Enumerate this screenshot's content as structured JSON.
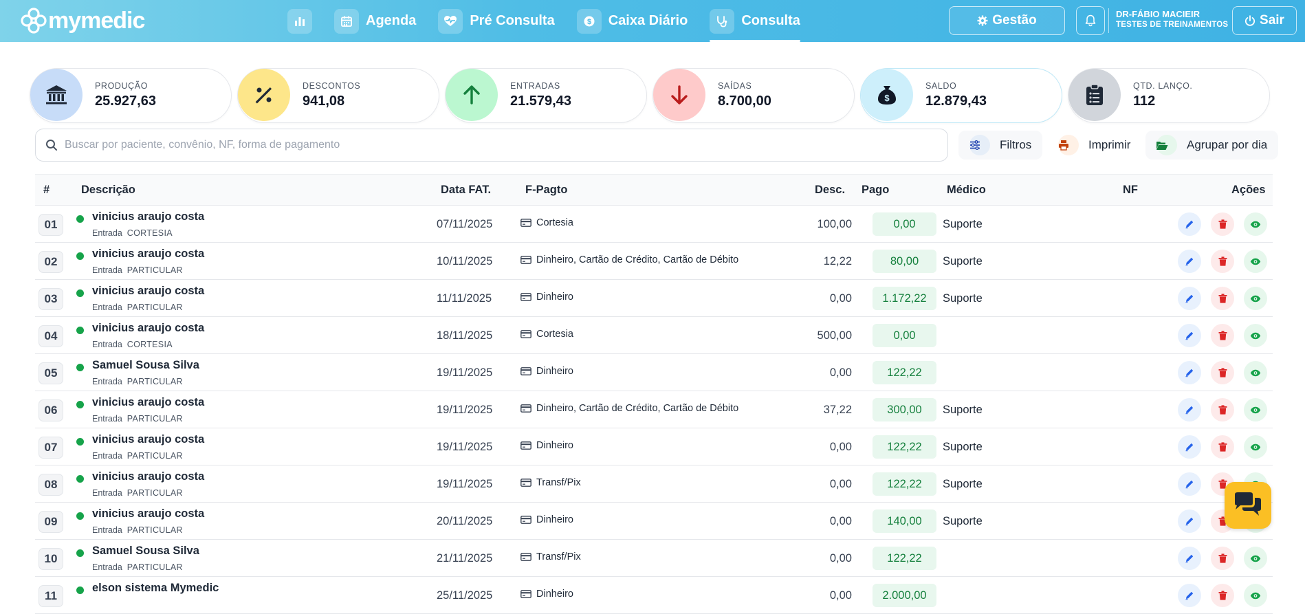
{
  "header": {
    "logo_text": "mymedic",
    "nav": [
      {
        "label": "",
        "icon": "bar-chart-icon"
      },
      {
        "label": "Agenda",
        "icon": "calendar-icon"
      },
      {
        "label": "Pré Consulta",
        "icon": "heart-pulse-icon"
      },
      {
        "label": "Caixa Diário",
        "icon": "money-icon"
      },
      {
        "label": "Consulta",
        "icon": "stethoscope-icon",
        "active": true
      }
    ],
    "gestao_label": "Gestão",
    "user_name": "DR-FÁBIO MACIEIR",
    "user_sub": "TESTES DE TREINAMENTOS",
    "sair_label": "Sair"
  },
  "stats": [
    {
      "label": "PRODUÇÃO",
      "value": "25.927,63",
      "icon": "bank-icon",
      "color": "#c7dcf8",
      "icon_color": "#1f2937"
    },
    {
      "label": "DESCONTOS",
      "value": "941,08",
      "icon": "percent-icon",
      "color": "#fde68a",
      "icon_color": "#1f2937"
    },
    {
      "label": "ENTRADAS",
      "value": "21.579,43",
      "icon": "arrow-up-icon",
      "color": "#bbf7d0",
      "icon_color": "#15803d"
    },
    {
      "label": "SAÍDAS",
      "value": "8.700,00",
      "icon": "arrow-down-icon",
      "color": "#fecaca",
      "icon_color": "#b91c1c"
    },
    {
      "label": "SALDO",
      "value": "12.879,43",
      "icon": "money-bag-icon",
      "color": "#cdeffb",
      "icon_color": "#111827"
    },
    {
      "label": "QTD. LANÇO.",
      "value": "112",
      "icon": "clipboard-icon",
      "color": "#d1d5db",
      "icon_color": "#1f2937"
    }
  ],
  "search": {
    "placeholder": "Buscar por paciente, convênio, NF, forma de pagamento"
  },
  "tools": {
    "filtros": "Filtros",
    "imprimir": "Imprimir",
    "agrupar": "Agrupar por dia"
  },
  "table": {
    "headers": {
      "num": "#",
      "descricao": "Descrição",
      "data": "Data FAT.",
      "fpagto": "F-Pagto",
      "desc": "Desc.",
      "pago": "Pago",
      "medico": "Médico",
      "nf": "NF",
      "acoes": "Ações"
    },
    "rows": [
      {
        "num": "01",
        "name": "vinicius araujo costa",
        "tipo": "Entrada",
        "conv": "CORTESIA",
        "data": "07/11/2025",
        "fpagto": "Cortesia",
        "desc": "100,00",
        "pago": "0,00",
        "medico": "Suporte"
      },
      {
        "num": "02",
        "name": "vinicius araujo costa",
        "tipo": "Entrada",
        "conv": "PARTICULAR",
        "data": "10/11/2025",
        "fpagto": "Dinheiro, Cartão de Crédito, Cartão de Débito",
        "desc": "12,22",
        "pago": "80,00",
        "medico": "Suporte"
      },
      {
        "num": "03",
        "name": "vinicius araujo costa",
        "tipo": "Entrada",
        "conv": "PARTICULAR",
        "data": "11/11/2025",
        "fpagto": "Dinheiro",
        "desc": "0,00",
        "pago": "1.172,22",
        "medico": "Suporte"
      },
      {
        "num": "04",
        "name": "vinicius araujo costa",
        "tipo": "Entrada",
        "conv": "CORTESIA",
        "data": "18/11/2025",
        "fpagto": "Cortesia",
        "desc": "500,00",
        "pago": "0,00",
        "medico": ""
      },
      {
        "num": "05",
        "name": "Samuel Sousa Silva",
        "tipo": "Entrada",
        "conv": "PARTICULAR",
        "data": "19/11/2025",
        "fpagto": "Dinheiro",
        "desc": "0,00",
        "pago": "122,22",
        "medico": ""
      },
      {
        "num": "06",
        "name": "vinicius araujo costa",
        "tipo": "Entrada",
        "conv": "PARTICULAR",
        "data": "19/11/2025",
        "fpagto": "Dinheiro, Cartão de Crédito, Cartão de Débito",
        "desc": "37,22",
        "pago": "300,00",
        "medico": "Suporte"
      },
      {
        "num": "07",
        "name": "vinicius araujo costa",
        "tipo": "Entrada",
        "conv": "PARTICULAR",
        "data": "19/11/2025",
        "fpagto": "Dinheiro",
        "desc": "0,00",
        "pago": "122,22",
        "medico": "Suporte"
      },
      {
        "num": "08",
        "name": "vinicius araujo costa",
        "tipo": "Entrada",
        "conv": "PARTICULAR",
        "data": "19/11/2025",
        "fpagto": "Transf/Pix",
        "desc": "0,00",
        "pago": "122,22",
        "medico": "Suporte"
      },
      {
        "num": "09",
        "name": "vinicius araujo costa",
        "tipo": "Entrada",
        "conv": "PARTICULAR",
        "data": "20/11/2025",
        "fpagto": "Dinheiro",
        "desc": "0,00",
        "pago": "140,00",
        "medico": "Suporte"
      },
      {
        "num": "10",
        "name": "Samuel Sousa Silva",
        "tipo": "Entrada",
        "conv": "PARTICULAR",
        "data": "21/11/2025",
        "fpagto": "Transf/Pix",
        "desc": "0,00",
        "pago": "122,22",
        "medico": ""
      },
      {
        "num": "11",
        "name": "elson sistema Mymedic",
        "tipo": "",
        "conv": "",
        "data": "25/11/2025",
        "fpagto": "Dinheiro",
        "desc": "0,00",
        "pago": "2.000,00",
        "medico": ""
      }
    ]
  },
  "colors": {
    "accent": "#3fb2e4",
    "status_dot": "#16a34a",
    "chat": "#fbbf24"
  }
}
